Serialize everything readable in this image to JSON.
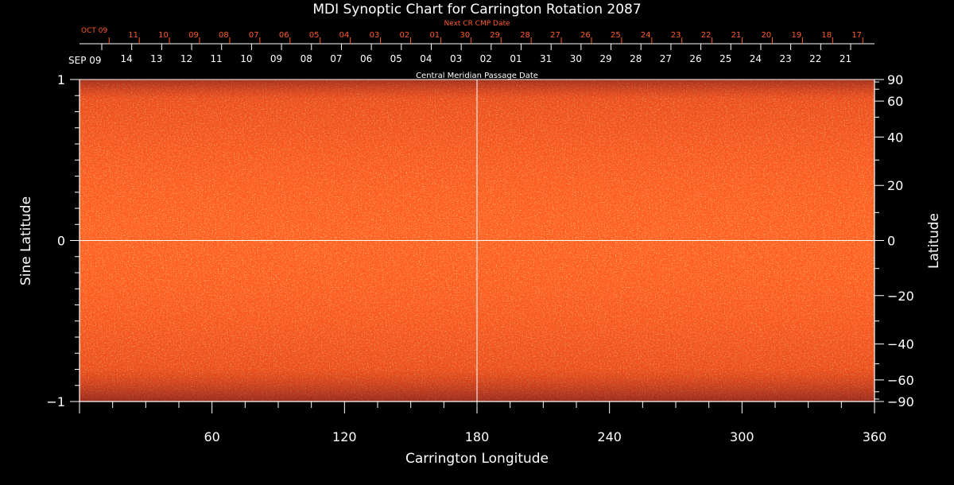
{
  "chart_data": {
    "type": "heatmap",
    "title": "MDI Synoptic Chart for Carrington Rotation 2087",
    "xlabel": "Carrington Longitude",
    "ylabel_left": "Sine Latitude",
    "ylabel_right": "Latitude",
    "xlim": [
      0,
      360
    ],
    "ylim": [
      -1,
      1
    ],
    "x_ticks": [
      60,
      120,
      180,
      240,
      300,
      360
    ],
    "y_ticks_left": [
      {
        "value": 1,
        "label": "1"
      },
      {
        "value": 0,
        "label": "0"
      },
      {
        "value": -1,
        "label": "−1"
      }
    ],
    "y_ticks_right": [
      90,
      60,
      40,
      20,
      0,
      -20,
      -40,
      -60,
      -90
    ],
    "y_ticks_right_labels": [
      "90",
      "60",
      "40",
      "20",
      "0",
      "−20",
      "−40",
      "−60",
      "−90"
    ],
    "grid_lines": {
      "longitude": 180,
      "sine_latitude": 0
    },
    "top_axis_title": "Central Meridian Passage Date",
    "top_axis_start_label": "SEP 09",
    "top_axis_dates": [
      "14",
      "13",
      "12",
      "11",
      "10",
      "09",
      "08",
      "07",
      "06",
      "05",
      "04",
      "03",
      "02",
      "01",
      "31",
      "30",
      "29",
      "28",
      "27",
      "26",
      "25",
      "24",
      "23",
      "22",
      "21"
    ],
    "next_cr_title": "Next CR CMP Date",
    "next_cr_start_label": "OCT 09",
    "next_cr_dates": [
      "11",
      "10",
      "09",
      "08",
      "07",
      "06",
      "05",
      "04",
      "03",
      "02",
      "01",
      "30",
      "29",
      "28",
      "27",
      "26",
      "25",
      "24",
      "23",
      "22",
      "21",
      "20",
      "19",
      "18",
      "17"
    ],
    "colors": {
      "background": "#000000",
      "map_base": "#ff5a1e",
      "axis": "#ffffff",
      "next_cr": "#ff5a2a"
    }
  }
}
